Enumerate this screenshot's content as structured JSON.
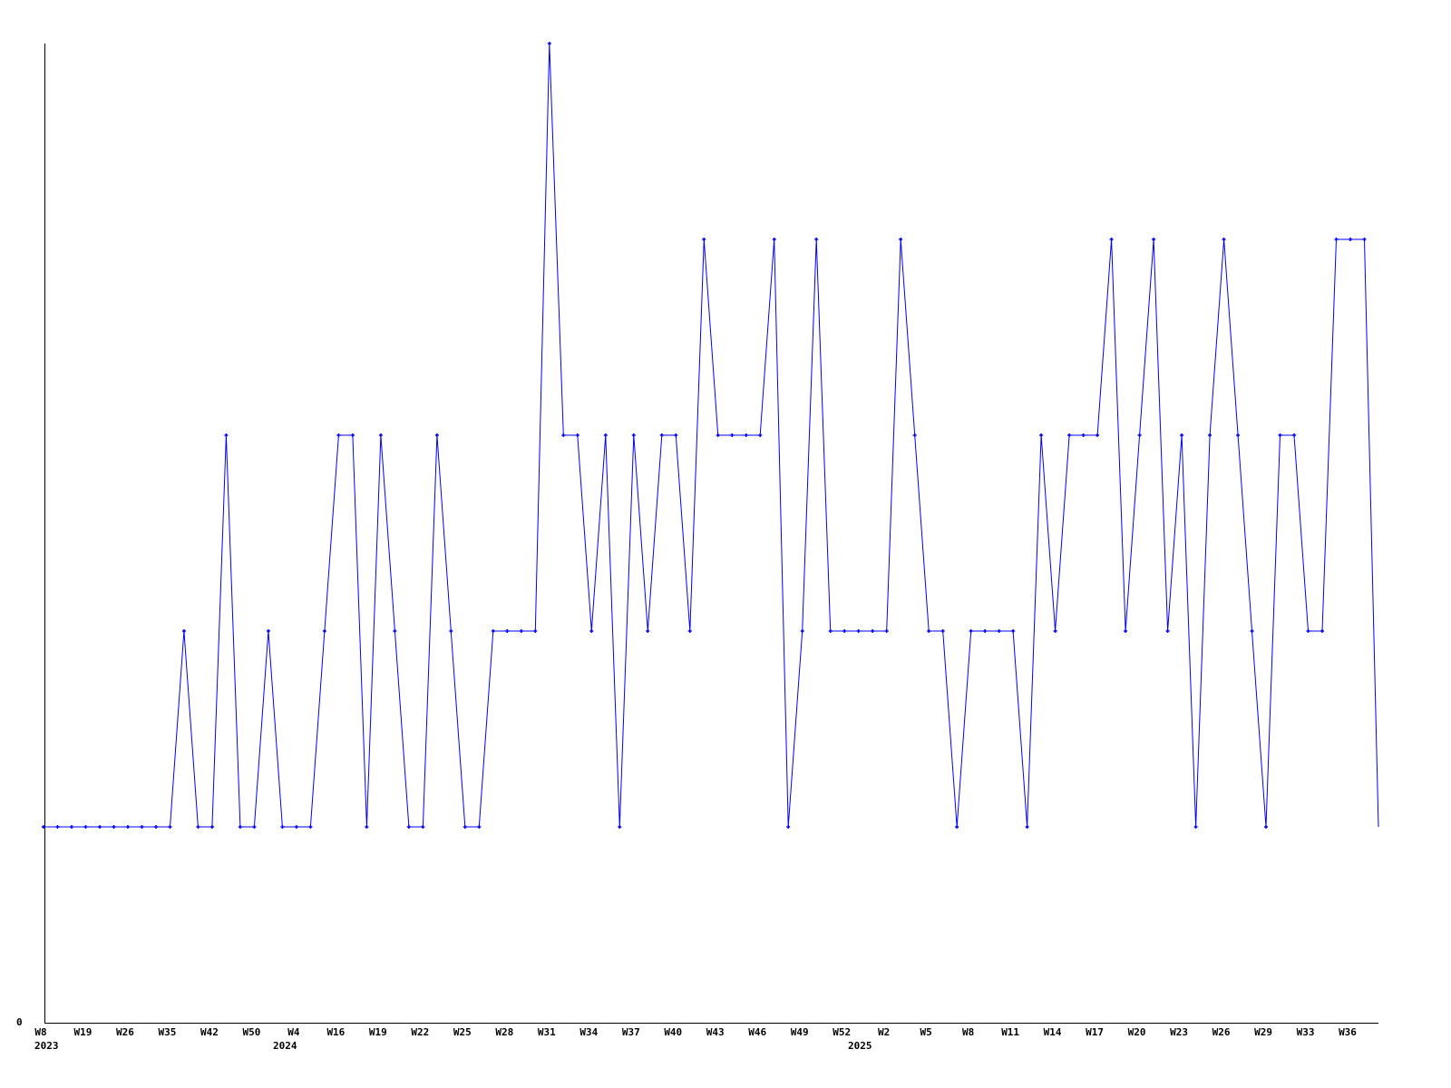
{
  "chart_data": {
    "type": "line",
    "title": "",
    "xlabel": "",
    "ylabel": "",
    "ylim": [
      0,
      5
    ],
    "y_tick_labels": [
      "0"
    ],
    "grid": false,
    "legend": "none",
    "line_color": "#0000ff",
    "x_tick_labels": [
      "W8",
      "W19",
      "W26",
      "W35",
      "W42",
      "W50",
      "W4",
      "W16",
      "W19",
      "W22",
      "W25",
      "W28",
      "W31",
      "W34",
      "W37",
      "W40",
      "W43",
      "W46",
      "W49",
      "W52",
      "W2",
      "W5",
      "W8",
      "W11",
      "W14",
      "W17",
      "W20",
      "W23",
      "W26",
      "W29",
      "W33",
      "W36"
    ],
    "year_labels": [
      "2023",
      "2024",
      "2025"
    ],
    "series": [
      {
        "values": [
          1,
          1,
          1,
          1,
          1,
          1,
          1,
          1,
          1,
          1,
          2,
          1,
          1,
          3,
          1,
          1,
          2,
          1,
          1,
          1,
          2,
          3,
          3,
          1,
          3,
          2,
          1,
          1,
          3,
          2,
          1,
          1,
          2,
          2,
          2,
          2,
          5,
          3,
          3,
          2,
          3,
          1,
          3,
          2,
          3,
          3,
          2,
          4,
          3,
          3,
          3,
          3,
          4,
          1,
          2,
          4,
          2,
          2,
          2,
          2,
          2,
          4,
          3,
          2,
          2,
          1,
          2,
          2,
          2,
          2,
          1,
          3,
          2,
          3,
          3,
          3,
          4,
          2,
          3,
          4,
          2,
          3,
          1,
          3,
          4,
          3,
          2,
          1,
          3,
          3,
          2,
          2,
          4,
          4,
          4,
          1
        ]
      }
    ]
  }
}
